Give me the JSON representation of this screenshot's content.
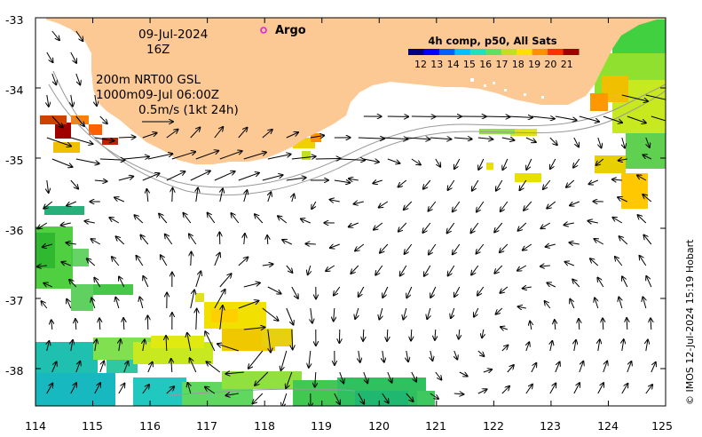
{
  "map": {
    "date_line": "09-Jul-2024",
    "time_line": "16Z",
    "depth_line": "200m  NRT00 GSL",
    "depth_line2": "1000m09-Jul 06:00Z",
    "scale_label": "0.5m/s (1kt 24h)",
    "argo_label": "Argo",
    "colorbar_title": "4h comp, p50, All Sats",
    "colorbar_ticks": [
      "12",
      "13",
      "14",
      "15",
      "16",
      "17",
      "18",
      "19",
      "20",
      "21"
    ],
    "credit": "© IMOS 12-Jul-2024 15:19 Hobart",
    "x_ticks": [
      "114",
      "115",
      "116",
      "117",
      "118",
      "119",
      "120",
      "121",
      "122",
      "123",
      "124",
      "125"
    ],
    "y_ticks": [
      "-33",
      "-34",
      "-35",
      "-36",
      "-37",
      "-38"
    ],
    "colors": {
      "land": "#fcc893",
      "argo_marker": "#e020e0",
      "arrows": "#000000",
      "contours": "#9a9a9a"
    },
    "colorbar_colors": [
      "#00007f",
      "#0000ff",
      "#0060ff",
      "#00c0ff",
      "#20e0c0",
      "#60e060",
      "#c0e020",
      "#ffe000",
      "#ff9000",
      "#ff3000",
      "#a00000"
    ]
  }
}
